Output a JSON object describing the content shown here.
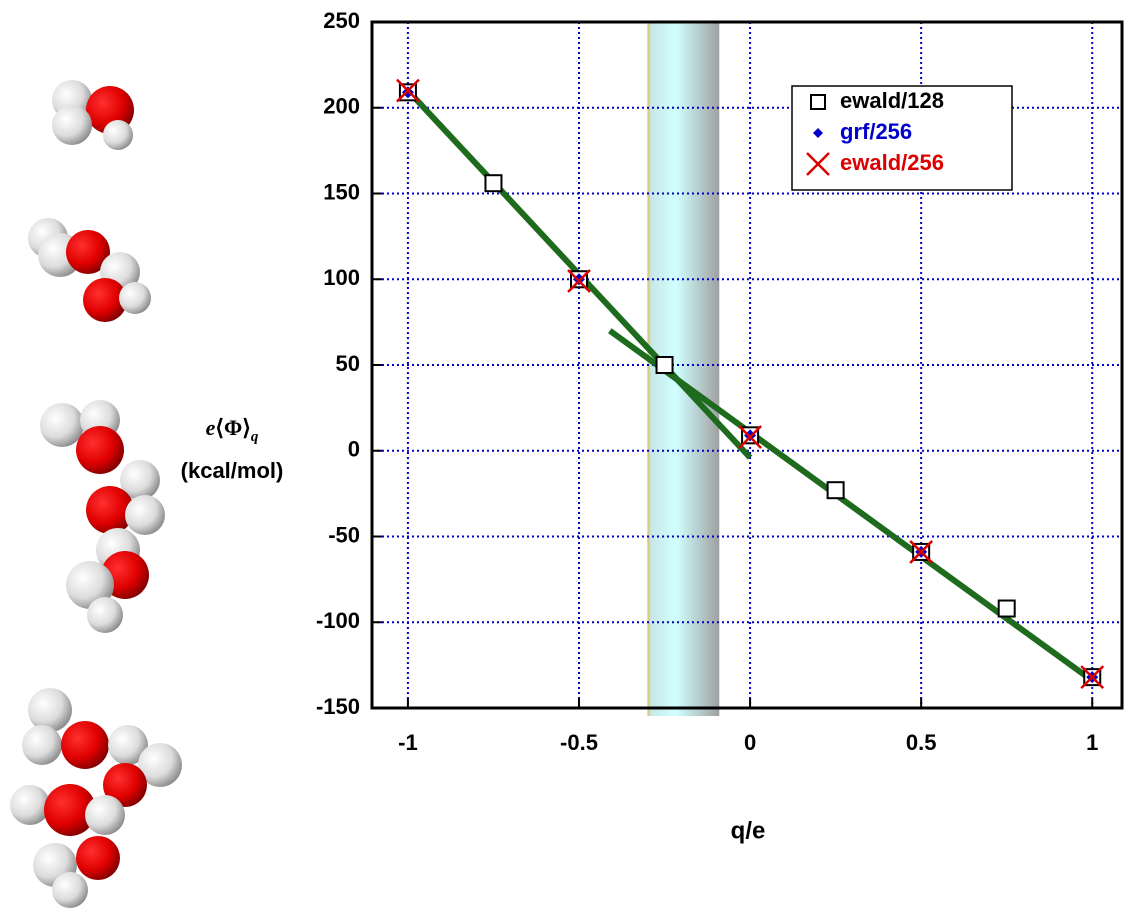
{
  "chart_data": {
    "type": "scatter",
    "x_label": "q/e",
    "y_label": {
      "prefix": "e",
      "symbol": "⟨Φ⟩",
      "subscript": "q",
      "unit": "(kcal/mol)"
    },
    "xlim": [
      -1.105,
      1.087
    ],
    "ylim": [
      -150,
      250
    ],
    "xticks": [
      -1,
      -0.5,
      0,
      0.5,
      1
    ],
    "yticks": [
      -150,
      -100,
      -50,
      0,
      50,
      100,
      150,
      200,
      250
    ],
    "grid": true,
    "band": [
      -0.3,
      -0.09
    ],
    "series": [
      {
        "name": "ewald/128",
        "color": "#000000",
        "marker": "square",
        "x": [
          -1,
          -0.75,
          -0.5,
          -0.25,
          0,
          0.25,
          0.5,
          0.75,
          1
        ],
        "values": [
          209,
          156,
          100,
          50,
          9,
          -23,
          -59,
          -92,
          -132
        ]
      },
      {
        "name": "grf/256",
        "color": "#0000cc",
        "marker": "diamond",
        "x": [
          -1,
          -0.5,
          0,
          0.5,
          1
        ],
        "values": [
          209,
          100,
          9,
          -59,
          -132
        ]
      },
      {
        "name": "ewald/256",
        "color": "#dd0000",
        "marker": "cross",
        "x": [
          -1,
          -0.5,
          0,
          0.5,
          1
        ],
        "values": [
          210,
          99,
          8,
          -59,
          -132
        ]
      }
    ],
    "lines": [
      {
        "color": "#1e6b1e",
        "x": [
          -1,
          0
        ],
        "values": [
          210,
          -4
        ]
      },
      {
        "color": "#1e6b1e",
        "x": [
          -0.41,
          1
        ],
        "values": [
          70,
          -134
        ]
      }
    ]
  }
}
